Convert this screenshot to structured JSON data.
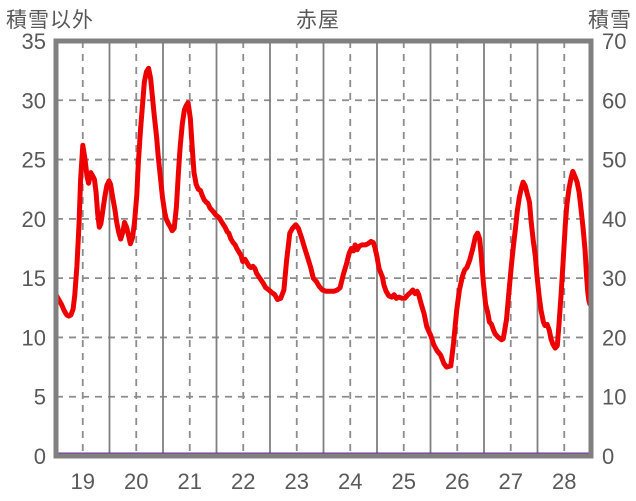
{
  "header": {
    "left_axis_title": "積雪以外",
    "title": "赤屋",
    "right_axis_title": "積雪"
  },
  "colors": {
    "background": "#ffffff",
    "border": "#808080",
    "grid_solid": "#808080",
    "grid_dashed": "#8c8c8c",
    "text": "#595959",
    "red_series": "#ee0000",
    "purple_series": "#7030a0"
  },
  "chart_data": {
    "type": "line",
    "title": "赤屋",
    "grid": {
      "vertical_solid_every": 1,
      "vertical_dashed_at_label_centers": true,
      "horizontal_dashed_step_left": 5,
      "legend": "none"
    },
    "x_axis": {
      "min": 18.5,
      "max": 28.5,
      "tick_labels": [
        "19",
        "20",
        "21",
        "22",
        "23",
        "24",
        "25",
        "26",
        "27",
        "28"
      ],
      "tick_positions": [
        19,
        20,
        21,
        22,
        23,
        24,
        25,
        26,
        27,
        28
      ]
    },
    "left_axis": {
      "label": "積雪以外",
      "min": 0,
      "max": 35,
      "ticks": [
        0,
        5,
        10,
        15,
        20,
        25,
        30,
        35
      ]
    },
    "right_axis": {
      "label": "積雪",
      "min": 0,
      "max": 70,
      "ticks": [
        0,
        10,
        20,
        30,
        40,
        50,
        60,
        70
      ]
    },
    "series": [
      {
        "name": "積雪以外",
        "axis": "left",
        "color": "#ee0000",
        "stroke_width": 5,
        "points": [
          [
            18.5,
            13.6
          ],
          [
            18.55,
            13.2
          ],
          [
            18.6,
            12.8
          ],
          [
            18.65,
            12.3
          ],
          [
            18.7,
            11.9
          ],
          [
            18.74,
            11.8
          ],
          [
            18.78,
            11.9
          ],
          [
            18.82,
            12.4
          ],
          [
            18.85,
            13.5
          ],
          [
            18.89,
            16.0
          ],
          [
            18.93,
            19.5
          ],
          [
            18.96,
            23.3
          ],
          [
            19.0,
            26.2
          ],
          [
            19.04,
            25.1
          ],
          [
            19.08,
            23.6
          ],
          [
            19.11,
            23.0
          ],
          [
            19.15,
            23.9
          ],
          [
            19.19,
            23.6
          ],
          [
            19.22,
            23.3
          ],
          [
            19.25,
            22.2
          ],
          [
            19.28,
            20.4
          ],
          [
            19.31,
            19.3
          ],
          [
            19.34,
            19.6
          ],
          [
            19.37,
            20.5
          ],
          [
            19.41,
            21.8
          ],
          [
            19.45,
            22.8
          ],
          [
            19.49,
            23.2
          ],
          [
            19.52,
            22.9
          ],
          [
            19.56,
            21.8
          ],
          [
            19.6,
            20.8
          ],
          [
            19.63,
            19.8
          ],
          [
            19.67,
            18.9
          ],
          [
            19.71,
            18.3
          ],
          [
            19.75,
            18.9
          ],
          [
            19.78,
            19.7
          ],
          [
            19.82,
            19.3
          ],
          [
            19.86,
            18.5
          ],
          [
            19.89,
            17.9
          ],
          [
            19.93,
            18.4
          ],
          [
            19.97,
            19.8
          ],
          [
            20.01,
            22.0
          ],
          [
            20.04,
            24.8
          ],
          [
            20.08,
            27.5
          ],
          [
            20.12,
            29.8
          ],
          [
            20.15,
            31.5
          ],
          [
            20.19,
            32.4
          ],
          [
            20.23,
            32.7
          ],
          [
            20.27,
            31.8
          ],
          [
            20.3,
            30.4
          ],
          [
            20.34,
            28.6
          ],
          [
            20.38,
            26.9
          ],
          [
            20.41,
            25.3
          ],
          [
            20.45,
            23.6
          ],
          [
            20.49,
            21.8
          ],
          [
            20.53,
            20.6
          ],
          [
            20.56,
            20.0
          ],
          [
            20.6,
            19.6
          ],
          [
            20.64,
            19.3
          ],
          [
            20.67,
            19.0
          ],
          [
            20.71,
            19.2
          ],
          [
            20.75,
            21.0
          ],
          [
            20.79,
            24.0
          ],
          [
            20.82,
            26.0
          ],
          [
            20.86,
            28.0
          ],
          [
            20.9,
            29.2
          ],
          [
            20.94,
            29.6
          ],
          [
            20.97,
            29.8
          ],
          [
            21.01,
            28.5
          ],
          [
            21.05,
            25.8
          ],
          [
            21.08,
            23.9
          ],
          [
            21.12,
            22.9
          ],
          [
            21.16,
            22.5
          ],
          [
            21.2,
            22.4
          ],
          [
            21.23,
            22.0
          ],
          [
            21.27,
            21.6
          ],
          [
            21.31,
            21.4
          ],
          [
            21.34,
            21.3
          ],
          [
            21.38,
            20.9
          ],
          [
            21.44,
            20.6
          ],
          [
            21.49,
            20.3
          ],
          [
            21.55,
            20.1
          ],
          [
            21.6,
            19.7
          ],
          [
            21.66,
            19.3
          ],
          [
            21.7,
            18.9
          ],
          [
            21.73,
            18.8
          ],
          [
            21.77,
            18.3
          ],
          [
            21.81,
            18.0
          ],
          [
            21.85,
            17.8
          ],
          [
            21.88,
            17.5
          ],
          [
            21.92,
            17.2
          ],
          [
            21.96,
            16.9
          ],
          [
            21.99,
            16.4
          ],
          [
            22.03,
            16.6
          ],
          [
            22.07,
            16.3
          ],
          [
            22.11,
            16.0
          ],
          [
            22.14,
            15.9
          ],
          [
            22.18,
            16.0
          ],
          [
            22.22,
            15.8
          ],
          [
            22.25,
            15.4
          ],
          [
            22.31,
            15.0
          ],
          [
            22.37,
            14.6
          ],
          [
            22.42,
            14.2
          ],
          [
            22.48,
            14.0
          ],
          [
            22.53,
            13.8
          ],
          [
            22.59,
            13.6
          ],
          [
            22.64,
            13.2
          ],
          [
            22.7,
            13.3
          ],
          [
            22.76,
            14.0
          ],
          [
            22.81,
            16.5
          ],
          [
            22.87,
            18.8
          ],
          [
            22.92,
            19.2
          ],
          [
            22.98,
            19.5
          ],
          [
            23.03,
            19.2
          ],
          [
            23.09,
            18.4
          ],
          [
            23.15,
            17.5
          ],
          [
            23.2,
            16.8
          ],
          [
            23.26,
            15.9
          ],
          [
            23.31,
            15.0
          ],
          [
            23.37,
            14.7
          ],
          [
            23.42,
            14.3
          ],
          [
            23.48,
            14.0
          ],
          [
            23.55,
            13.9
          ],
          [
            23.63,
            13.9
          ],
          [
            23.7,
            13.9
          ],
          [
            23.76,
            14.0
          ],
          [
            23.81,
            14.2
          ],
          [
            23.87,
            15.3
          ],
          [
            23.93,
            16.2
          ],
          [
            23.98,
            17.1
          ],
          [
            24.02,
            17.5
          ],
          [
            24.06,
            17.3
          ],
          [
            24.09,
            17.8
          ],
          [
            24.13,
            17.4
          ],
          [
            24.17,
            17.7
          ],
          [
            24.22,
            17.8
          ],
          [
            24.28,
            17.8
          ],
          [
            24.33,
            17.9
          ],
          [
            24.39,
            18.1
          ],
          [
            24.43,
            18.0
          ],
          [
            24.46,
            17.6
          ],
          [
            24.5,
            16.8
          ],
          [
            24.54,
            15.8
          ],
          [
            24.6,
            15.1
          ],
          [
            24.63,
            14.4
          ],
          [
            24.67,
            13.9
          ],
          [
            24.72,
            13.5
          ],
          [
            24.78,
            13.4
          ],
          [
            24.82,
            13.6
          ],
          [
            24.86,
            13.3
          ],
          [
            24.91,
            13.4
          ],
          [
            24.97,
            13.3
          ],
          [
            25.02,
            13.3
          ],
          [
            25.08,
            13.6
          ],
          [
            25.13,
            13.8
          ],
          [
            25.17,
            14.0
          ],
          [
            25.21,
            13.7
          ],
          [
            25.25,
            13.9
          ],
          [
            25.28,
            13.6
          ],
          [
            25.32,
            12.9
          ],
          [
            25.38,
            12.0
          ],
          [
            25.43,
            10.9
          ],
          [
            25.51,
            10.1
          ],
          [
            25.56,
            9.4
          ],
          [
            25.62,
            8.9
          ],
          [
            25.69,
            8.5
          ],
          [
            25.75,
            7.8
          ],
          [
            25.8,
            7.5
          ],
          [
            25.88,
            7.6
          ],
          [
            25.93,
            9.5
          ],
          [
            25.99,
            12.3
          ],
          [
            26.04,
            14.0
          ],
          [
            26.1,
            15.2
          ],
          [
            26.14,
            15.7
          ],
          [
            26.18,
            15.9
          ],
          [
            26.23,
            16.5
          ],
          [
            26.29,
            17.5
          ],
          [
            26.34,
            18.5
          ],
          [
            26.38,
            18.8
          ],
          [
            26.42,
            18.3
          ],
          [
            26.45,
            16.8
          ],
          [
            26.49,
            14.5
          ],
          [
            26.53,
            12.8
          ],
          [
            26.57,
            12.1
          ],
          [
            26.6,
            11.3
          ],
          [
            26.64,
            11.1
          ],
          [
            26.68,
            10.6
          ],
          [
            26.71,
            10.3
          ],
          [
            26.77,
            10.0
          ],
          [
            26.83,
            9.8
          ],
          [
            26.86,
            9.9
          ],
          [
            26.92,
            11.5
          ],
          [
            26.97,
            14.0
          ],
          [
            27.01,
            16.0
          ],
          [
            27.05,
            17.7
          ],
          [
            27.09,
            19.3
          ],
          [
            27.12,
            20.6
          ],
          [
            27.16,
            21.8
          ],
          [
            27.2,
            22.6
          ],
          [
            27.23,
            23.1
          ],
          [
            27.27,
            22.8
          ],
          [
            27.31,
            22.1
          ],
          [
            27.35,
            21.4
          ],
          [
            27.38,
            19.8
          ],
          [
            27.42,
            18.2
          ],
          [
            27.46,
            16.8
          ],
          [
            27.49,
            15.2
          ],
          [
            27.53,
            13.5
          ],
          [
            27.57,
            12.2
          ],
          [
            27.61,
            11.3
          ],
          [
            27.64,
            11.0
          ],
          [
            27.68,
            11.1
          ],
          [
            27.72,
            10.6
          ],
          [
            27.75,
            9.9
          ],
          [
            27.79,
            9.4
          ],
          [
            27.83,
            9.1
          ],
          [
            27.87,
            9.3
          ],
          [
            27.9,
            11.0
          ],
          [
            27.94,
            13.5
          ],
          [
            27.98,
            16.5
          ],
          [
            28.02,
            19.5
          ],
          [
            28.05,
            21.2
          ],
          [
            28.09,
            22.6
          ],
          [
            28.13,
            23.5
          ],
          [
            28.16,
            24.0
          ],
          [
            28.2,
            23.6
          ],
          [
            28.24,
            23.1
          ],
          [
            28.28,
            22.2
          ],
          [
            28.31,
            21.0
          ],
          [
            28.35,
            19.3
          ],
          [
            28.39,
            17.3
          ],
          [
            28.42,
            15.0
          ],
          [
            28.44,
            13.8
          ],
          [
            28.46,
            13.1
          ],
          [
            28.48,
            12.8
          ]
        ]
      },
      {
        "name": "積雪",
        "axis": "right",
        "color": "#7030a0",
        "stroke_width": 3,
        "points": [
          [
            18.5,
            0
          ],
          [
            28.5,
            0
          ]
        ]
      }
    ]
  }
}
